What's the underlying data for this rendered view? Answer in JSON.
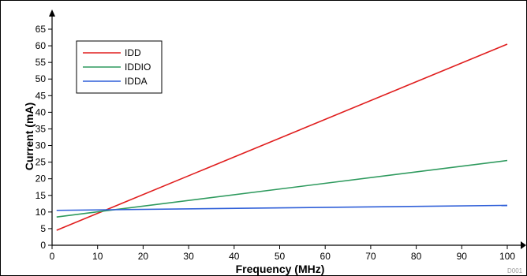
{
  "chart_data": {
    "type": "line",
    "xlabel": "Frequency (MHz)",
    "ylabel": "Current (mA)",
    "xlim": [
      0,
      100
    ],
    "ylim": [
      0,
      65
    ],
    "xticks": [
      0,
      10,
      20,
      30,
      40,
      50,
      60,
      70,
      80,
      90,
      100
    ],
    "yticks": [
      0,
      5,
      10,
      15,
      20,
      25,
      30,
      35,
      40,
      45,
      50,
      55,
      60,
      65
    ],
    "grid": false,
    "legend_position": "top-left",
    "series": [
      {
        "name": "IDD",
        "color": "#e01e1e",
        "x": [
          1,
          100
        ],
        "y": [
          4.5,
          60.5
        ]
      },
      {
        "name": "IDDIO",
        "color": "#2e9a5e",
        "x": [
          1,
          100
        ],
        "y": [
          8.5,
          25.5
        ]
      },
      {
        "name": "IDDA",
        "color": "#2f5fd8",
        "x": [
          1,
          100
        ],
        "y": [
          10.5,
          12
        ]
      }
    ],
    "credit": "D001"
  }
}
